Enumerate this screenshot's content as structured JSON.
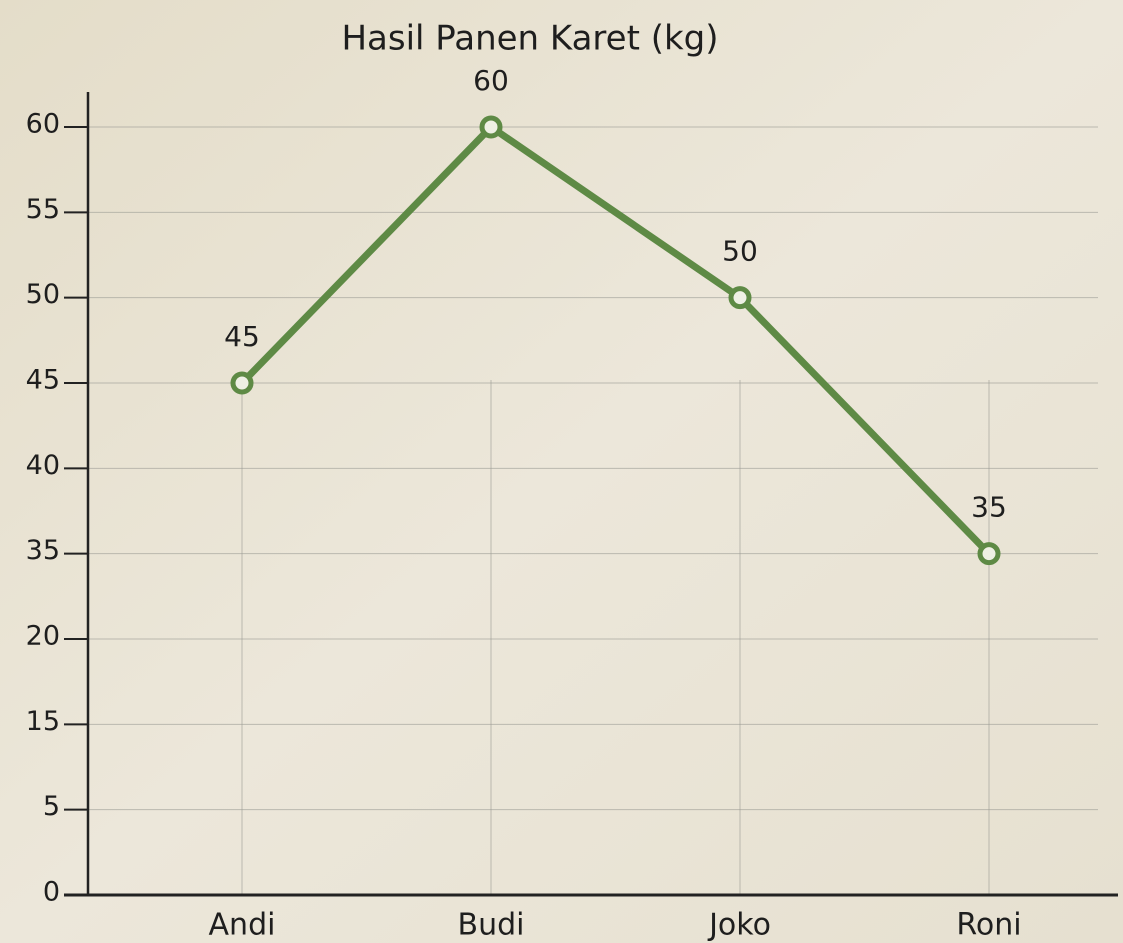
{
  "chart_data": {
    "type": "line",
    "title": "Hasil Panen Karet (kg)",
    "categories": [
      "Andi",
      "Budi",
      "Joko",
      "Roni"
    ],
    "values": [
      45,
      60,
      50,
      35
    ],
    "color": "#5e8a45",
    "ylim": [
      0,
      60
    ],
    "yticks": [
      60,
      55,
      50,
      45,
      40,
      35,
      20,
      15,
      5,
      0
    ],
    "grid": true
  }
}
